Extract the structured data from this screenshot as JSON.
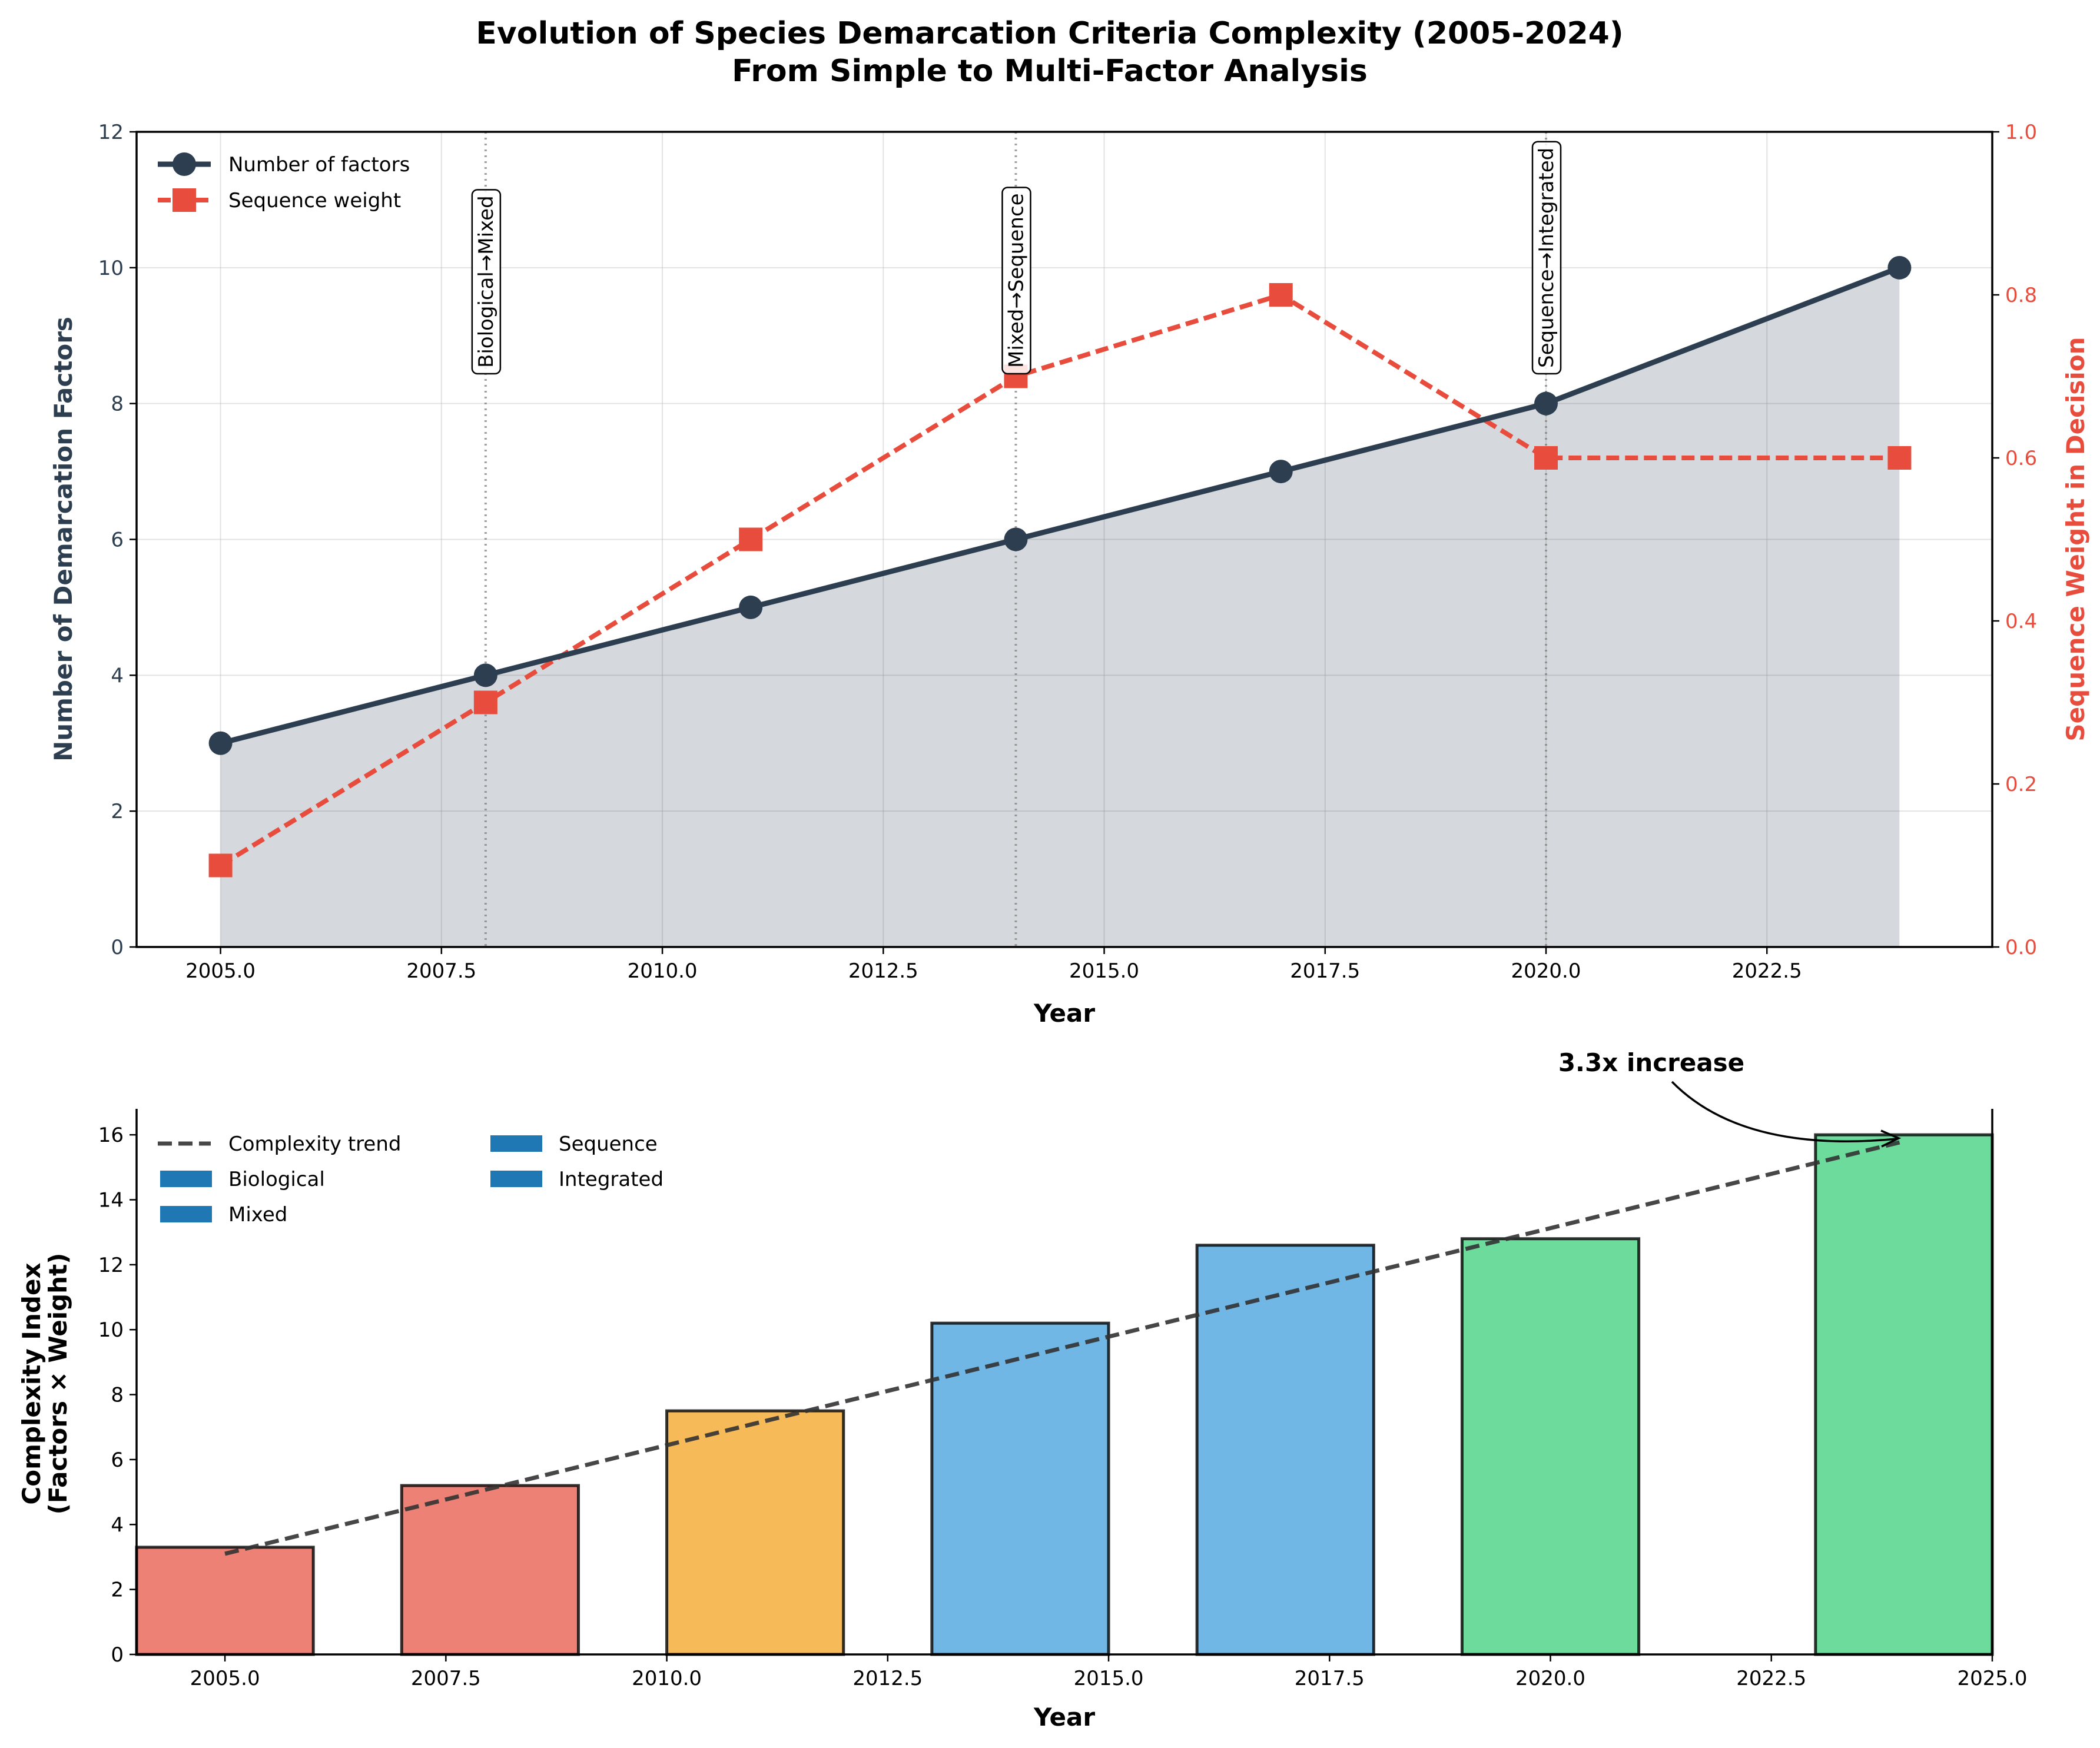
{
  "title_line1": "Evolution of Species Demarcation Criteria Complexity (2005-2024)",
  "title_line2": "From Simple to Multi-Factor Analysis",
  "colors": {
    "factors": "#2c3e50",
    "weight": "#e74c3c",
    "fill": "#2c3e50",
    "biological": "#e74c3c",
    "mixed": "#f39c12",
    "sequence": "#3498db",
    "integrated": "#2ecc71",
    "legend_patch": "#1f77b4",
    "trend": "#333333"
  },
  "chart_data": [
    {
      "type": "line",
      "xlabel": "Year",
      "ylabel": "Number of Demarcation Factors",
      "y2label": "Sequence Weight in Decision",
      "xlim": [
        2004.05,
        2025.05
      ],
      "ylim": [
        0,
        12
      ],
      "y2lim": [
        0,
        1.0
      ],
      "x_ticks": [
        2005.0,
        2007.5,
        2010.0,
        2012.5,
        2015.0,
        2017.5,
        2020.0,
        2022.5
      ],
      "x_tick_labels": [
        "2005.0",
        "2007.5",
        "2010.0",
        "2012.5",
        "2015.0",
        "2017.5",
        "2020.0",
        "2022.5"
      ],
      "y_ticks": [
        0,
        2,
        4,
        6,
        8,
        10,
        12
      ],
      "y_tick_labels": [
        "0",
        "2",
        "4",
        "6",
        "8",
        "10",
        "12"
      ],
      "y2_ticks": [
        0,
        0.2,
        0.4,
        0.6,
        0.8,
        1.0
      ],
      "y2_tick_labels": [
        "0.0",
        "0.2",
        "0.4",
        "0.6",
        "0.8",
        "1.0"
      ],
      "grid": true,
      "legend_position": "top-left",
      "series": [
        {
          "name": "Number of factors",
          "axis": "left",
          "style": "solid-circle",
          "x": [
            2005,
            2008,
            2011,
            2014,
            2017,
            2020,
            2024
          ],
          "values": [
            3,
            4,
            5,
            6,
            7,
            8,
            10
          ]
        },
        {
          "name": "Sequence weight",
          "axis": "right",
          "style": "dashed-square",
          "x": [
            2005,
            2008,
            2011,
            2014,
            2017,
            2020,
            2024
          ],
          "values": [
            0.1,
            0.3,
            0.5,
            0.7,
            0.8,
            0.6,
            0.6
          ]
        }
      ],
      "transitions": [
        {
          "x": 2008,
          "label": "Biological→Mixed"
        },
        {
          "x": 2014,
          "label": "Mixed→Sequence"
        },
        {
          "x": 2020,
          "label": "Sequence→Integrated"
        }
      ]
    },
    {
      "type": "bar",
      "xlabel": "Year",
      "ylabel_line1": "Complexity Index",
      "ylabel_line2": "(Factors × Weight)",
      "xlim": [
        2004,
        2025
      ],
      "ylim": [
        0,
        16.8
      ],
      "x_ticks": [
        2005.0,
        2007.5,
        2010.0,
        2012.5,
        2015.0,
        2017.5,
        2020.0,
        2022.5,
        2025.0
      ],
      "x_tick_labels": [
        "2005.0",
        "2007.5",
        "2010.0",
        "2012.5",
        "2015.0",
        "2017.5",
        "2020.0",
        "2022.5",
        "2025.0"
      ],
      "y_ticks": [
        0,
        2,
        4,
        6,
        8,
        10,
        12,
        14,
        16
      ],
      "y_tick_labels": [
        "0",
        "2",
        "4",
        "6",
        "8",
        "10",
        "12",
        "14",
        "16"
      ],
      "bar_width_years": 2,
      "bars": [
        {
          "x": 2005,
          "value": 3.3,
          "category": "biological"
        },
        {
          "x": 2008,
          "value": 5.2,
          "category": "biological"
        },
        {
          "x": 2011,
          "value": 7.5,
          "category": "mixed"
        },
        {
          "x": 2014,
          "value": 10.2,
          "category": "sequence"
        },
        {
          "x": 2017,
          "value": 12.6,
          "category": "sequence"
        },
        {
          "x": 2020,
          "value": 12.8,
          "category": "integrated"
        },
        {
          "x": 2024,
          "value": 16.0,
          "category": "integrated"
        }
      ],
      "trend": {
        "name": "Complexity trend",
        "x": [
          2005,
          2024
        ],
        "values": [
          3.1,
          15.8
        ]
      },
      "legend_position": "top-left",
      "legend_entries": [
        "Complexity trend",
        "Biological",
        "Mixed",
        "Sequence",
        "Integrated"
      ],
      "annotation": {
        "text": "3.3x increase",
        "x": 2024,
        "y": 16.1
      }
    }
  ]
}
